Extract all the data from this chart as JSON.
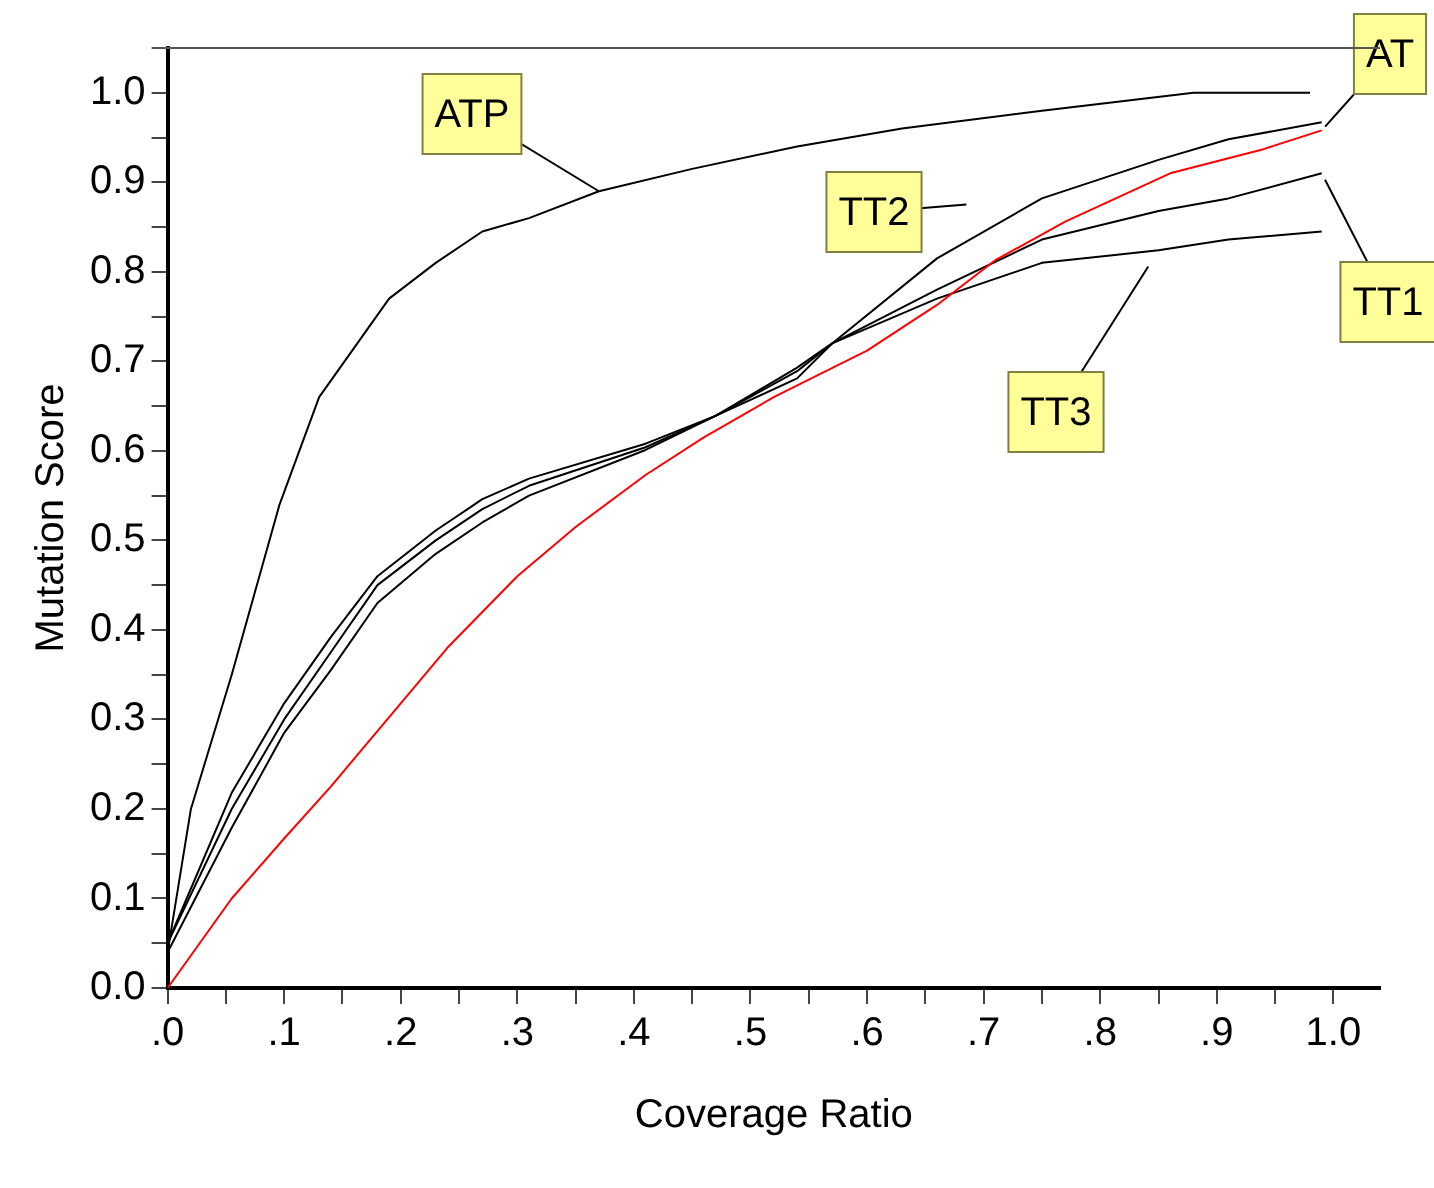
{
  "chart_data": {
    "type": "line",
    "xlabel": "Coverage Ratio",
    "ylabel": "Mutation Score",
    "xlim": [
      0,
      1.04
    ],
    "ylim": [
      0,
      1.05
    ],
    "xticks": [
      {
        "value": 0,
        "label": ".0"
      },
      {
        "value": 0.05,
        "label": null
      },
      {
        "value": 0.1,
        "label": ".1"
      },
      {
        "value": 0.15,
        "label": null
      },
      {
        "value": 0.2,
        "label": ".2"
      },
      {
        "value": 0.25,
        "label": null
      },
      {
        "value": 0.3,
        "label": ".3"
      },
      {
        "value": 0.35,
        "label": null
      },
      {
        "value": 0.4,
        "label": ".4"
      },
      {
        "value": 0.45,
        "label": null
      },
      {
        "value": 0.5,
        "label": ".5"
      },
      {
        "value": 0.55,
        "label": null
      },
      {
        "value": 0.6,
        "label": ".6"
      },
      {
        "value": 0.65,
        "label": null
      },
      {
        "value": 0.7,
        "label": ".7"
      },
      {
        "value": 0.75,
        "label": null
      },
      {
        "value": 0.8,
        "label": ".8"
      },
      {
        "value": 0.85,
        "label": null
      },
      {
        "value": 0.9,
        "label": ".9"
      },
      {
        "value": 0.95,
        "label": null
      },
      {
        "value": 1,
        "label": "1.0"
      }
    ],
    "yticks": [
      {
        "value": 0,
        "label": "0.0"
      },
      {
        "value": 0.05,
        "label": null
      },
      {
        "value": 0.1,
        "label": "0.1"
      },
      {
        "value": 0.15,
        "label": null
      },
      {
        "value": 0.2,
        "label": "0.2"
      },
      {
        "value": 0.25,
        "label": null
      },
      {
        "value": 0.3,
        "label": "0.3"
      },
      {
        "value": 0.35,
        "label": null
      },
      {
        "value": 0.4,
        "label": "0.4"
      },
      {
        "value": 0.45,
        "label": null
      },
      {
        "value": 0.5,
        "label": "0.5"
      },
      {
        "value": 0.55,
        "label": null
      },
      {
        "value": 0.6,
        "label": "0.6"
      },
      {
        "value": 0.65,
        "label": null
      },
      {
        "value": 0.7,
        "label": "0.7"
      },
      {
        "value": 0.75,
        "label": null
      },
      {
        "value": 0.8,
        "label": "0.8"
      },
      {
        "value": 0.85,
        "label": null
      },
      {
        "value": 0.9,
        "label": "0.9"
      },
      {
        "value": 0.95,
        "label": null
      },
      {
        "value": 1,
        "label": "1.0"
      }
    ],
    "grid": false,
    "legend": false,
    "marker": "none",
    "line_style": "solid",
    "series": [
      {
        "name": "ATP",
        "color": "#000000",
        "x": [
          0,
          0.02,
          0.055,
          0.096,
          0.13,
          0.19,
          0.23,
          0.27,
          0.31,
          0.37,
          0.45,
          0.54,
          0.63,
          0.75,
          0.88,
          0.98
        ],
        "values": [
          0.04,
          0.2,
          0.35,
          0.54,
          0.66,
          0.77,
          0.81,
          0.845,
          0.86,
          0.89,
          0.915,
          0.94,
          0.96,
          0.98,
          1.0,
          1.0
        ]
      },
      {
        "name": "TT2",
        "color": "#000000",
        "x": [
          0,
          0.055,
          0.1,
          0.14,
          0.18,
          0.23,
          0.27,
          0.31,
          0.41,
          0.47,
          0.54,
          0.57,
          0.66,
          0.75,
          0.85,
          0.91,
          0.99
        ],
        "values": [
          0.05,
          0.218,
          0.318,
          0.392,
          0.46,
          0.511,
          0.546,
          0.569,
          0.608,
          0.639,
          0.693,
          0.72,
          0.815,
          0.882,
          0.925,
          0.948,
          0.967
        ]
      },
      {
        "name": "AT",
        "color": "#ff0000",
        "x": [
          0,
          0.055,
          0.1,
          0.14,
          0.2,
          0.24,
          0.3,
          0.35,
          0.41,
          0.46,
          0.52,
          0.6,
          0.66,
          0.71,
          0.77,
          0.86,
          0.94,
          0.99
        ],
        "values": [
          0,
          0.1,
          0.167,
          0.225,
          0.318,
          0.38,
          0.46,
          0.515,
          0.573,
          0.615,
          0.66,
          0.712,
          0.763,
          0.813,
          0.856,
          0.91,
          0.937,
          0.958
        ]
      },
      {
        "name": "TT1",
        "color": "#000000",
        "x": [
          0,
          0.055,
          0.1,
          0.14,
          0.18,
          0.23,
          0.27,
          0.31,
          0.41,
          0.47,
          0.54,
          0.57,
          0.66,
          0.75,
          0.85,
          0.91,
          0.99
        ],
        "values": [
          0.05,
          0.2,
          0.3,
          0.375,
          0.45,
          0.5,
          0.535,
          0.561,
          0.604,
          0.639,
          0.689,
          0.72,
          0.78,
          0.836,
          0.868,
          0.882,
          0.91
        ]
      },
      {
        "name": "TT3",
        "color": "#000000",
        "x": [
          0,
          0.055,
          0.1,
          0.14,
          0.18,
          0.23,
          0.27,
          0.31,
          0.41,
          0.47,
          0.54,
          0.57,
          0.66,
          0.75,
          0.85,
          0.91,
          0.99
        ],
        "values": [
          0.04,
          0.179,
          0.285,
          0.355,
          0.43,
          0.485,
          0.52,
          0.55,
          0.601,
          0.639,
          0.681,
          0.72,
          0.77,
          0.81,
          0.824,
          0.836,
          0.845
        ]
      }
    ]
  }
}
